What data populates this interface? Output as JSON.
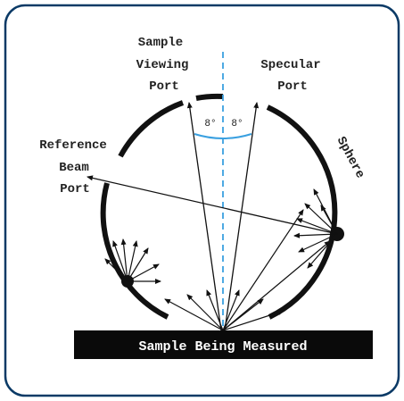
{
  "diagram": {
    "labels": {
      "sample_viewing_port": [
        "Sample",
        "Viewing",
        "Port"
      ],
      "specular_port": [
        "Specular",
        "Port"
      ],
      "reference_beam_port": [
        "Reference",
        "Beam",
        "Port"
      ],
      "sphere": "Sphere",
      "sample": "Sample Being Measured",
      "angle_left": "8°",
      "angle_right": "8°"
    },
    "colors": {
      "frame_border": "#0b3a66",
      "ink": "#111111",
      "dashed_axis": "#3aa0e0",
      "angle_arc": "#3aa0e0"
    }
  }
}
